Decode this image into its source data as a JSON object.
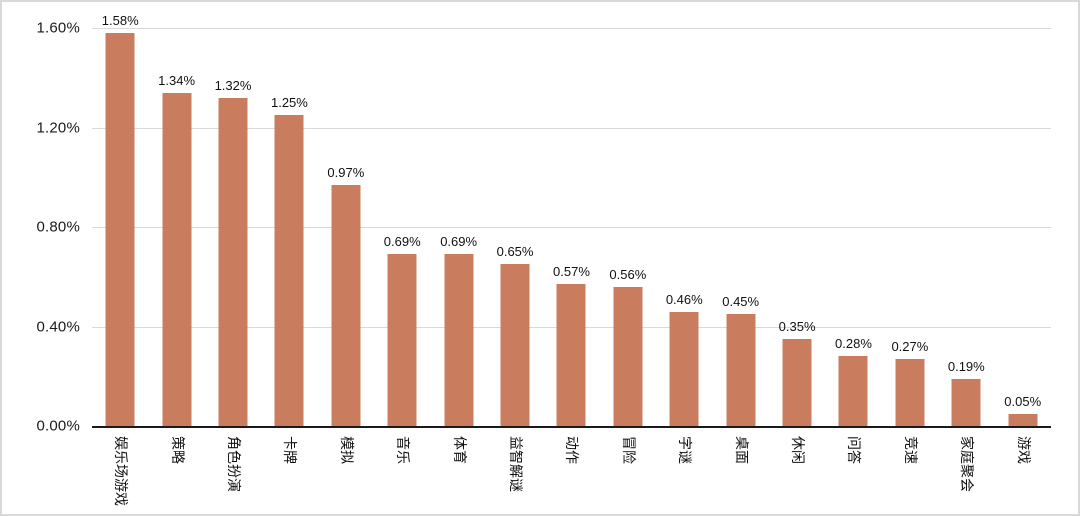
{
  "chart_data": {
    "type": "bar",
    "title": "",
    "xlabel": "",
    "ylabel": "",
    "categories": [
      "娱乐场游戏",
      "策略",
      "角色扮演",
      "卡牌",
      "模拟",
      "音乐",
      "体育",
      "益智解谜",
      "动作",
      "冒险",
      "字谜",
      "桌面",
      "休闲",
      "问答",
      "竞速",
      "家庭聚会",
      "游戏"
    ],
    "values": [
      1.58,
      1.34,
      1.32,
      1.25,
      0.97,
      0.69,
      0.69,
      0.65,
      0.57,
      0.56,
      0.46,
      0.45,
      0.35,
      0.28,
      0.27,
      0.19,
      0.05
    ],
    "value_labels": [
      "1.58%",
      "1.34%",
      "1.32%",
      "1.25%",
      "0.97%",
      "0.69%",
      "0.69%",
      "0.65%",
      "0.57%",
      "0.56%",
      "0.46%",
      "0.45%",
      "0.35%",
      "0.28%",
      "0.27%",
      "0.19%",
      "0.05%"
    ],
    "ylim": [
      0,
      1.6
    ],
    "y_ticks": [
      {
        "label": "0.00%",
        "value": 0.0
      },
      {
        "label": "0.40%",
        "value": 0.4
      },
      {
        "label": "0.80%",
        "value": 0.8
      },
      {
        "label": "1.20%",
        "value": 1.2
      },
      {
        "label": "1.60%",
        "value": 1.6
      }
    ],
    "grid": true,
    "legend": null,
    "colors": {
      "bar": "#c97c5e",
      "gridline": "#d9d9d9",
      "axis_line": "#1a1a1a",
      "text": "#111111",
      "frame_border": "#d9d9d9",
      "background": "#ffffff"
    }
  }
}
